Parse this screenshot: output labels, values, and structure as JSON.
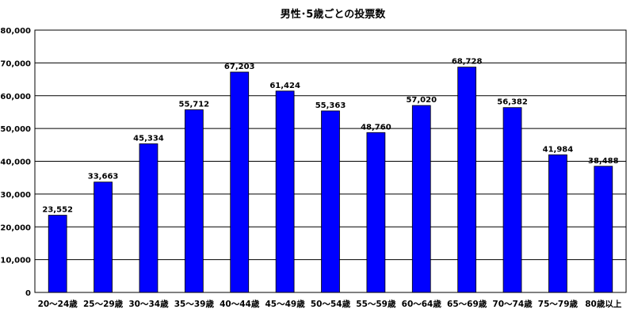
{
  "chart_data": {
    "type": "bar",
    "title": "男性･5歳ごとの投票数",
    "xlabel": "",
    "ylabel": "",
    "categories": [
      "20～24歳",
      "25～29歳",
      "30～34歳",
      "35～39歳",
      "40～44歳",
      "45～49歳",
      "50～54歳",
      "55～59歳",
      "60～64歳",
      "65～69歳",
      "70～74歳",
      "75～79歳",
      "80歳以上"
    ],
    "values": [
      23552,
      33663,
      45334,
      55712,
      67203,
      61424,
      55363,
      48760,
      57020,
      68728,
      56382,
      41984,
      38488
    ],
    "value_labels": [
      "23,552",
      "33,663",
      "45,334",
      "55,712",
      "67,203",
      "61,424",
      "55,363",
      "48,760",
      "57,020",
      "68,728",
      "56,382",
      "41,984",
      "38,488"
    ],
    "ylim": [
      0,
      80000
    ],
    "yticks": [
      0,
      10000,
      20000,
      30000,
      40000,
      50000,
      60000,
      70000,
      80000
    ],
    "ytick_labels": [
      "0",
      "10,000",
      "20,000",
      "30,000",
      "40,000",
      "50,000",
      "60,000",
      "70,000",
      "80,000"
    ],
    "grid": true,
    "legend": "none",
    "bar_color": "#0000ff",
    "bar_stroke": "#000000",
    "grid_color": "#000000"
  }
}
